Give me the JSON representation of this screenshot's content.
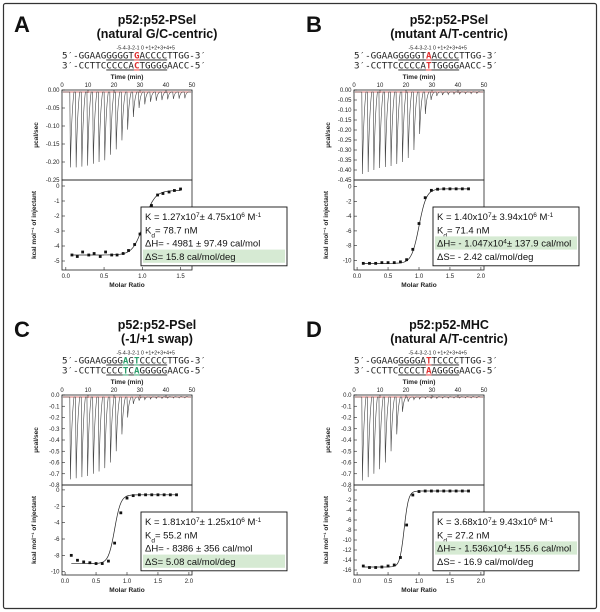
{
  "figure_border_color": "#333333",
  "colors": {
    "raw": "#444444",
    "baseline": "#d9534f",
    "fit": "#222222",
    "point": "#111111",
    "highlight_bg": "#d6ead3",
    "mut_red": "#e03030",
    "mut_green": "#2a9d6a"
  },
  "chart_data": [
    {
      "type": "scatter",
      "id": "A",
      "letter": "A",
      "title": [
        "p52:p52-PSel",
        "(natural G/C-centric)"
      ],
      "dna": {
        "positions_label": "-5-4-3-2-1 0 +1+2+3+4+5",
        "top_strand": [
          {
            "t": "5′-GGAAG"
          },
          {
            "t": "GGGGT",
            "u": true
          },
          {
            "t": "G",
            "c": "red",
            "u": true
          },
          {
            "t": "ACCCC",
            "u": true
          },
          {
            "t": "TTGG-3′"
          }
        ],
        "bottom_strand": [
          {
            "t": "3′-CCTTC"
          },
          {
            "t": "CCCCA",
            "u": true
          },
          {
            "t": "C",
            "c": "red",
            "u": true
          },
          {
            "t": "TGGGG",
            "u": true
          },
          {
            "t": "AACC-5′"
          }
        ]
      },
      "raw_panel": {
        "x_label": "Time (min)",
        "x_ticks": [
          0,
          10,
          20,
          30,
          40,
          50
        ],
        "xlim": [
          0,
          50
        ],
        "y_label": "μcal/sec",
        "y_ticks": [
          0.0,
          -0.05,
          -0.1,
          -0.15,
          -0.2,
          -0.25
        ],
        "ylim": [
          -0.25,
          0.0
        ],
        "injection_start_min": 3,
        "injection_interval_min": 2.2,
        "injection_count": 21,
        "peak_depths": [
          -0.215,
          -0.215,
          -0.213,
          -0.21,
          -0.205,
          -0.2,
          -0.195,
          -0.18,
          -0.165,
          -0.14,
          -0.11,
          -0.075,
          -0.05,
          -0.04,
          -0.033,
          -0.03,
          -0.028,
          -0.026,
          -0.025,
          -0.024,
          -0.023
        ]
      },
      "itc_panel": {
        "x_label": "Molar Ratio",
        "x_ticks": [
          0.0,
          0.5,
          1.0,
          1.5
        ],
        "xlim": [
          -0.05,
          1.65
        ],
        "y_label": "kcal mol⁻¹ of injectant",
        "y_ticks": [
          0,
          -1,
          -2,
          -3,
          -4,
          -5
        ],
        "ylim": [
          -5.6,
          0.4
        ],
        "x": [
          0.08,
          0.15,
          0.22,
          0.3,
          0.37,
          0.45,
          0.52,
          0.6,
          0.67,
          0.75,
          0.82,
          0.9,
          0.97,
          1.05,
          1.12,
          1.2,
          1.27,
          1.35,
          1.42,
          1.5
        ],
        "y": [
          -4.6,
          -4.7,
          -4.4,
          -4.6,
          -4.5,
          -4.7,
          -4.4,
          -4.6,
          -4.6,
          -4.5,
          -4.3,
          -3.9,
          -3.2,
          -2.2,
          -1.3,
          -0.6,
          -0.5,
          -0.4,
          -0.3,
          -0.2
        ],
        "fit": {
          "bottom": -4.6,
          "top": -0.3,
          "mid": 1.02,
          "width": 0.07
        }
      },
      "annotation": {
        "lines": [
          {
            "parts": [
              {
                "t": "K = 1.27x10"
              },
              {
                "t": "7",
                "sup": true
              },
              {
                "t": "± 4.75x10"
              },
              {
                "t": "6",
                "sup": true
              },
              {
                "t": " M"
              },
              {
                "t": "-1",
                "sup": true
              }
            ]
          },
          {
            "parts": [
              {
                "t": "K"
              },
              {
                "t": "d",
                "sub": true
              },
              {
                "t": "= 78.7 nM"
              }
            ]
          },
          {
            "parts": [
              {
                "t": "ΔH= - 4981 ± 97.49 cal/mol"
              }
            ]
          },
          {
            "parts": [
              {
                "t": "ΔS= 15.8 cal/mol/deg"
              }
            ],
            "highlight": true
          }
        ]
      }
    },
    {
      "type": "scatter",
      "id": "B",
      "letter": "B",
      "title": [
        "p52:p52-PSel",
        "(mutant A/T-centric)"
      ],
      "dna": {
        "positions_label": "-5-4-3-2-1 0 +1+2+3+4+5",
        "top_strand": [
          {
            "t": "5′-GGAAG"
          },
          {
            "t": "GGGGT",
            "u": true
          },
          {
            "t": "A",
            "c": "red",
            "u": true
          },
          {
            "t": "ACCCC",
            "u": true
          },
          {
            "t": "TTGG-3′"
          }
        ],
        "bottom_strand": [
          {
            "t": "3′-CCTTC"
          },
          {
            "t": "CCCCA",
            "u": true
          },
          {
            "t": "T",
            "c": "red",
            "u": true
          },
          {
            "t": "TGGGG",
            "u": true
          },
          {
            "t": "AACC-5′"
          }
        ]
      },
      "raw_panel": {
        "x_label": "Time (min)",
        "x_ticks": [
          0,
          10,
          20,
          30,
          40,
          50
        ],
        "xlim": [
          0,
          50
        ],
        "y_label": "μcal/sec",
        "y_ticks": [
          0.0,
          -0.05,
          -0.1,
          -0.15,
          -0.2,
          -0.25,
          -0.3,
          -0.35,
          -0.4,
          -0.45
        ],
        "ylim": [
          -0.45,
          0.0
        ],
        "injection_start_min": 3,
        "injection_interval_min": 2.2,
        "injection_count": 21,
        "peak_depths": [
          -0.42,
          -0.41,
          -0.4,
          -0.39,
          -0.385,
          -0.38,
          -0.37,
          -0.36,
          -0.34,
          -0.3,
          -0.22,
          -0.12,
          -0.05,
          -0.03,
          -0.025,
          -0.022,
          -0.02,
          -0.02,
          -0.018,
          -0.018,
          -0.017
        ]
      },
      "itc_panel": {
        "x_label": "Molar Ratio",
        "x_ticks": [
          0.0,
          0.5,
          1.0,
          1.5,
          2.0
        ],
        "xlim": [
          -0.05,
          2.05
        ],
        "y_label": "kcal mol⁻¹ of injectant",
        "y_ticks": [
          0.0,
          -2.0,
          -4.0,
          -6.0,
          -8.0,
          -10.0
        ],
        "ylim": [
          -11.3,
          0.9
        ],
        "x": [
          0.1,
          0.2,
          0.3,
          0.4,
          0.5,
          0.6,
          0.7,
          0.8,
          0.9,
          1.0,
          1.1,
          1.2,
          1.3,
          1.4,
          1.5,
          1.6,
          1.7,
          1.8
        ],
        "y": [
          -10.4,
          -10.4,
          -10.4,
          -10.3,
          -10.3,
          -10.3,
          -10.2,
          -9.9,
          -8.5,
          -5.0,
          -1.5,
          -0.5,
          -0.35,
          -0.3,
          -0.3,
          -0.3,
          -0.3,
          -0.3
        ],
        "fit": {
          "bottom": -10.4,
          "top": -0.3,
          "mid": 1.0,
          "width": 0.06
        }
      },
      "annotation": {
        "lines": [
          {
            "parts": [
              {
                "t": "K = 1.40x10"
              },
              {
                "t": "7",
                "sup": true
              },
              {
                "t": "± 3.94x10"
              },
              {
                "t": "6",
                "sup": true
              },
              {
                "t": " M"
              },
              {
                "t": "-1",
                "sup": true
              }
            ]
          },
          {
            "parts": [
              {
                "t": "K"
              },
              {
                "t": "d",
                "sub": true
              },
              {
                "t": "= 71.4 nM"
              }
            ]
          },
          {
            "parts": [
              {
                "t": "ΔH= - 1.047x10"
              },
              {
                "t": "4",
                "sup": true
              },
              {
                "t": "± 137.9 cal/mol"
              }
            ],
            "highlight": true
          },
          {
            "parts": [
              {
                "t": "ΔS= - 2.42 cal/mol/deg"
              }
            ]
          }
        ]
      }
    },
    {
      "type": "scatter",
      "id": "C",
      "letter": "C",
      "title": [
        "p52:p52-PSel",
        "(-1/+1 swap)"
      ],
      "dna": {
        "positions_label": "-5-4-3-2-1 0 +1+2+3+4+5",
        "top_strand": [
          {
            "t": "5′-GGAAG"
          },
          {
            "t": "GGG",
            "u": true
          },
          {
            "t": "A",
            "c": "green",
            "u": true
          },
          {
            "t": "G",
            "u": true
          },
          {
            "t": "T",
            "c": "green",
            "u": true
          },
          {
            "t": "CCCCC",
            "u": true
          },
          {
            "t": "TTGG-3′"
          }
        ],
        "bottom_strand": [
          {
            "t": "3′-CCTTC"
          },
          {
            "t": "CCC",
            "u": true
          },
          {
            "t": "T",
            "c": "green",
            "u": true
          },
          {
            "t": "C",
            "u": true
          },
          {
            "t": "A",
            "c": "green",
            "u": true
          },
          {
            "t": "GGGGG",
            "u": true
          },
          {
            "t": "AACG-5′"
          }
        ]
      },
      "raw_panel": {
        "x_label": "Time (min)",
        "x_ticks": [
          0,
          10,
          20,
          30,
          40,
          50
        ],
        "xlim": [
          0,
          50
        ],
        "y_label": "μcal/sec",
        "y_ticks": [
          0.0,
          -0.1,
          -0.2,
          -0.3,
          -0.4,
          -0.5,
          -0.6,
          -0.7,
          -0.8
        ],
        "ylim": [
          -0.8,
          0.0
        ],
        "injection_start_min": 3,
        "injection_interval_min": 2.2,
        "injection_count": 21,
        "peak_depths": [
          -0.75,
          -0.74,
          -0.73,
          -0.72,
          -0.7,
          -0.68,
          -0.65,
          -0.6,
          -0.5,
          -0.35,
          -0.2,
          -0.08,
          -0.05,
          -0.04,
          -0.035,
          -0.03,
          -0.03,
          -0.028,
          -0.027,
          -0.026,
          -0.025
        ]
      },
      "itc_panel": {
        "x_label": "Molar Ratio",
        "x_ticks": [
          0.0,
          0.5,
          1.0,
          1.5,
          2.0
        ],
        "xlim": [
          -0.05,
          2.05
        ],
        "y_label": "kcal mol⁻¹ of injectant",
        "y_ticks": [
          0.0,
          -2.0,
          -4.0,
          -6.0,
          -8.0,
          -10.0
        ],
        "ylim": [
          -10.4,
          0.6
        ],
        "x": [
          0.1,
          0.2,
          0.3,
          0.4,
          0.5,
          0.6,
          0.7,
          0.8,
          0.9,
          1.0,
          1.1,
          1.2,
          1.3,
          1.4,
          1.5,
          1.6,
          1.7,
          1.8
        ],
        "y": [
          -8.0,
          -8.6,
          -8.8,
          -8.9,
          -9.0,
          -9.0,
          -8.7,
          -6.5,
          -2.8,
          -1.0,
          -0.7,
          -0.6,
          -0.6,
          -0.6,
          -0.6,
          -0.6,
          -0.6,
          -0.6
        ],
        "fit": {
          "bottom": -9.0,
          "top": -0.6,
          "mid": 0.8,
          "width": 0.05
        }
      },
      "annotation": {
        "lines": [
          {
            "parts": [
              {
                "t": "K = 1.81x10"
              },
              {
                "t": "7",
                "sup": true
              },
              {
                "t": "± 1.25x10"
              },
              {
                "t": "6",
                "sup": true
              },
              {
                "t": " M"
              },
              {
                "t": "-1",
                "sup": true
              }
            ]
          },
          {
            "parts": [
              {
                "t": "K"
              },
              {
                "t": "d",
                "sub": true
              },
              {
                "t": "= 55.2 nM"
              }
            ]
          },
          {
            "parts": [
              {
                "t": "ΔH= - 8386 ± 356 cal/mol"
              }
            ]
          },
          {
            "parts": [
              {
                "t": "ΔS= 5.08 cal/mol/deg"
              }
            ],
            "highlight": true
          }
        ]
      }
    },
    {
      "type": "scatter",
      "id": "D",
      "letter": "D",
      "title": [
        "p52:p52-MHC",
        "(natural A/T-centric)"
      ],
      "dna": {
        "positions_label": "-5-4-3-2-1 0 +1+2+3+4+5",
        "top_strand": [
          {
            "t": "5′-GGAAG"
          },
          {
            "t": "GGGGA",
            "u": true
          },
          {
            "t": "T",
            "c": "red",
            "u": true
          },
          {
            "t": "TCCCC",
            "u": true
          },
          {
            "t": "TTGG-3′"
          }
        ],
        "bottom_strand": [
          {
            "t": "3′-CCTTC"
          },
          {
            "t": "CCCCT",
            "u": true
          },
          {
            "t": "A",
            "c": "red",
            "u": true
          },
          {
            "t": "AGGGG",
            "u": true
          },
          {
            "t": "AACG-5′"
          }
        ]
      },
      "raw_panel": {
        "x_label": "Time (min)",
        "x_ticks": [
          0,
          10,
          20,
          30,
          40,
          50
        ],
        "xlim": [
          0,
          50
        ],
        "y_label": "μcal/sec",
        "y_ticks": [
          0.0,
          -0.1,
          -0.2,
          -0.3,
          -0.4,
          -0.5,
          -0.6,
          -0.7,
          -0.8
        ],
        "ylim": [
          -0.8,
          0.0
        ],
        "injection_start_min": 3,
        "injection_interval_min": 2.2,
        "injection_count": 21,
        "peak_depths": [
          -0.76,
          -0.73,
          -0.7,
          -0.66,
          -0.6,
          -0.5,
          -0.35,
          -0.15,
          -0.06,
          -0.04,
          -0.035,
          -0.03,
          -0.03,
          -0.03,
          -0.028,
          -0.028,
          -0.027,
          -0.027,
          -0.026,
          -0.026,
          -0.025
        ]
      },
      "itc_panel": {
        "x_label": "Molar Ratio",
        "x_ticks": [
          0.0,
          0.5,
          1.0,
          1.5,
          2.0
        ],
        "xlim": [
          -0.05,
          2.05
        ],
        "y_label": "kcal mol⁻¹ of injectant",
        "y_ticks": [
          0.0,
          -2.0,
          -4.0,
          -6.0,
          -8.0,
          -10.0,
          -12.0,
          -14.0,
          -16.0
        ],
        "ylim": [
          -17.0,
          1.0
        ],
        "x": [
          0.1,
          0.2,
          0.3,
          0.4,
          0.5,
          0.6,
          0.7,
          0.8,
          0.9,
          1.0,
          1.1,
          1.2,
          1.3,
          1.4,
          1.5,
          1.6,
          1.7,
          1.8
        ],
        "y": [
          -15.2,
          -15.5,
          -15.5,
          -15.4,
          -15.2,
          -15.0,
          -13.5,
          -7.0,
          -1.0,
          -0.3,
          -0.2,
          -0.2,
          -0.2,
          -0.2,
          -0.2,
          -0.2,
          -0.2,
          -0.2
        ],
        "fit": {
          "bottom": -15.4,
          "top": -0.2,
          "mid": 0.76,
          "width": 0.035
        }
      },
      "annotation": {
        "lines": [
          {
            "parts": [
              {
                "t": "K = 3.68x10"
              },
              {
                "t": "7",
                "sup": true
              },
              {
                "t": "± 9.43x10"
              },
              {
                "t": "6",
                "sup": true
              },
              {
                "t": " M"
              },
              {
                "t": "-1",
                "sup": true
              }
            ]
          },
          {
            "parts": [
              {
                "t": "K"
              },
              {
                "t": "d",
                "sub": true
              },
              {
                "t": "= 27.2 nM"
              }
            ]
          },
          {
            "parts": [
              {
                "t": "ΔH= - 1.536x10"
              },
              {
                "t": "4",
                "sup": true
              },
              {
                "t": "± 155.6 cal/mol"
              }
            ],
            "highlight": true
          },
          {
            "parts": [
              {
                "t": "ΔS= - 16.9 cal/mol/deg"
              }
            ]
          }
        ]
      }
    }
  ]
}
